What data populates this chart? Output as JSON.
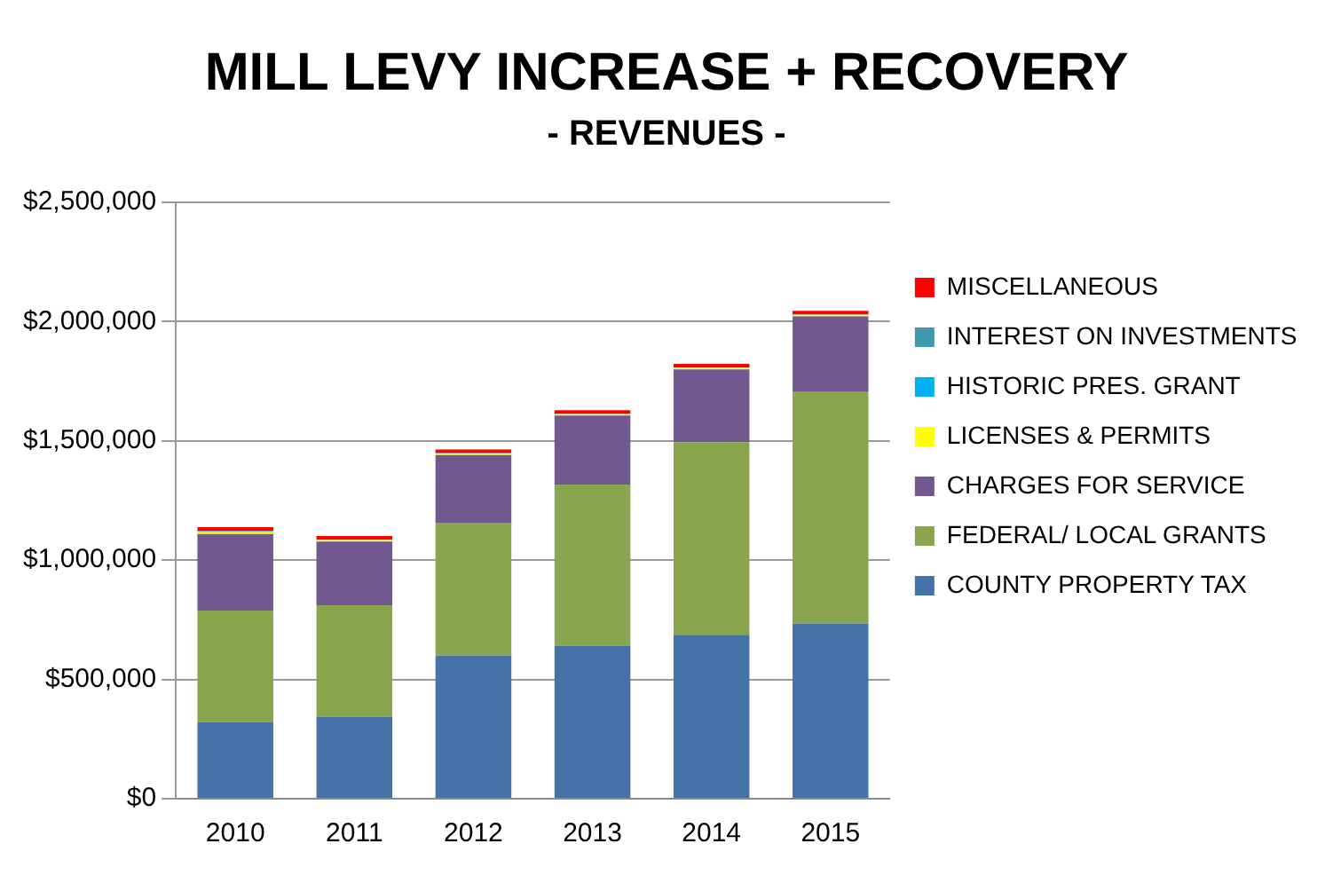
{
  "chart_data": {
    "type": "bar",
    "title": "MILL LEVY INCREASE + RECOVERY",
    "subtitle": "- REVENUES -",
    "categories": [
      "2010",
      "2011",
      "2012",
      "2013",
      "2014",
      "2015"
    ],
    "stacked": true,
    "grid": "y",
    "legend": "right",
    "ylim": [
      0,
      2500000
    ],
    "yticks": [
      {
        "value": 0,
        "label": "$0"
      },
      {
        "value": 500000,
        "label": "$500,000"
      },
      {
        "value": 1000000,
        "label": "$1,000,000"
      },
      {
        "value": 1500000,
        "label": "$1,500,000"
      },
      {
        "value": 2000000,
        "label": "$2,000,000"
      },
      {
        "value": 2500000,
        "label": "$2,500,000"
      }
    ],
    "series": [
      {
        "name": "COUNTY PROPERTY TAX",
        "color": "#4572a7",
        "values": [
          322000,
          343000,
          601000,
          642000,
          687000,
          735000
        ]
      },
      {
        "name": "FEDERAL/ LOCAL GRANTS",
        "color": "#89a54e",
        "values": [
          467000,
          468000,
          556000,
          675000,
          808000,
          970000
        ]
      },
      {
        "name": "CHARGES FOR SERVICE",
        "color": "#71588f",
        "values": [
          321000,
          267000,
          284000,
          289000,
          305000,
          317000
        ]
      },
      {
        "name": "LICENSES & PERMITS",
        "color": "#ffff00",
        "values": [
          8000,
          6000,
          6000,
          6000,
          6000,
          6000
        ]
      },
      {
        "name": "HISTORIC PRES. GRANT",
        "color": "#00b0f0",
        "values": [
          3000,
          0,
          0,
          0,
          0,
          0
        ]
      },
      {
        "name": "INTEREST ON INVESTMENTS",
        "color": "#4198af",
        "values": [
          2000,
          2000,
          2000,
          2000,
          2000,
          2000
        ]
      },
      {
        "name": "MISCELLANEOUS",
        "color": "#ff0000",
        "values": [
          15000,
          15000,
          15000,
          15000,
          15000,
          15000
        ]
      }
    ]
  }
}
